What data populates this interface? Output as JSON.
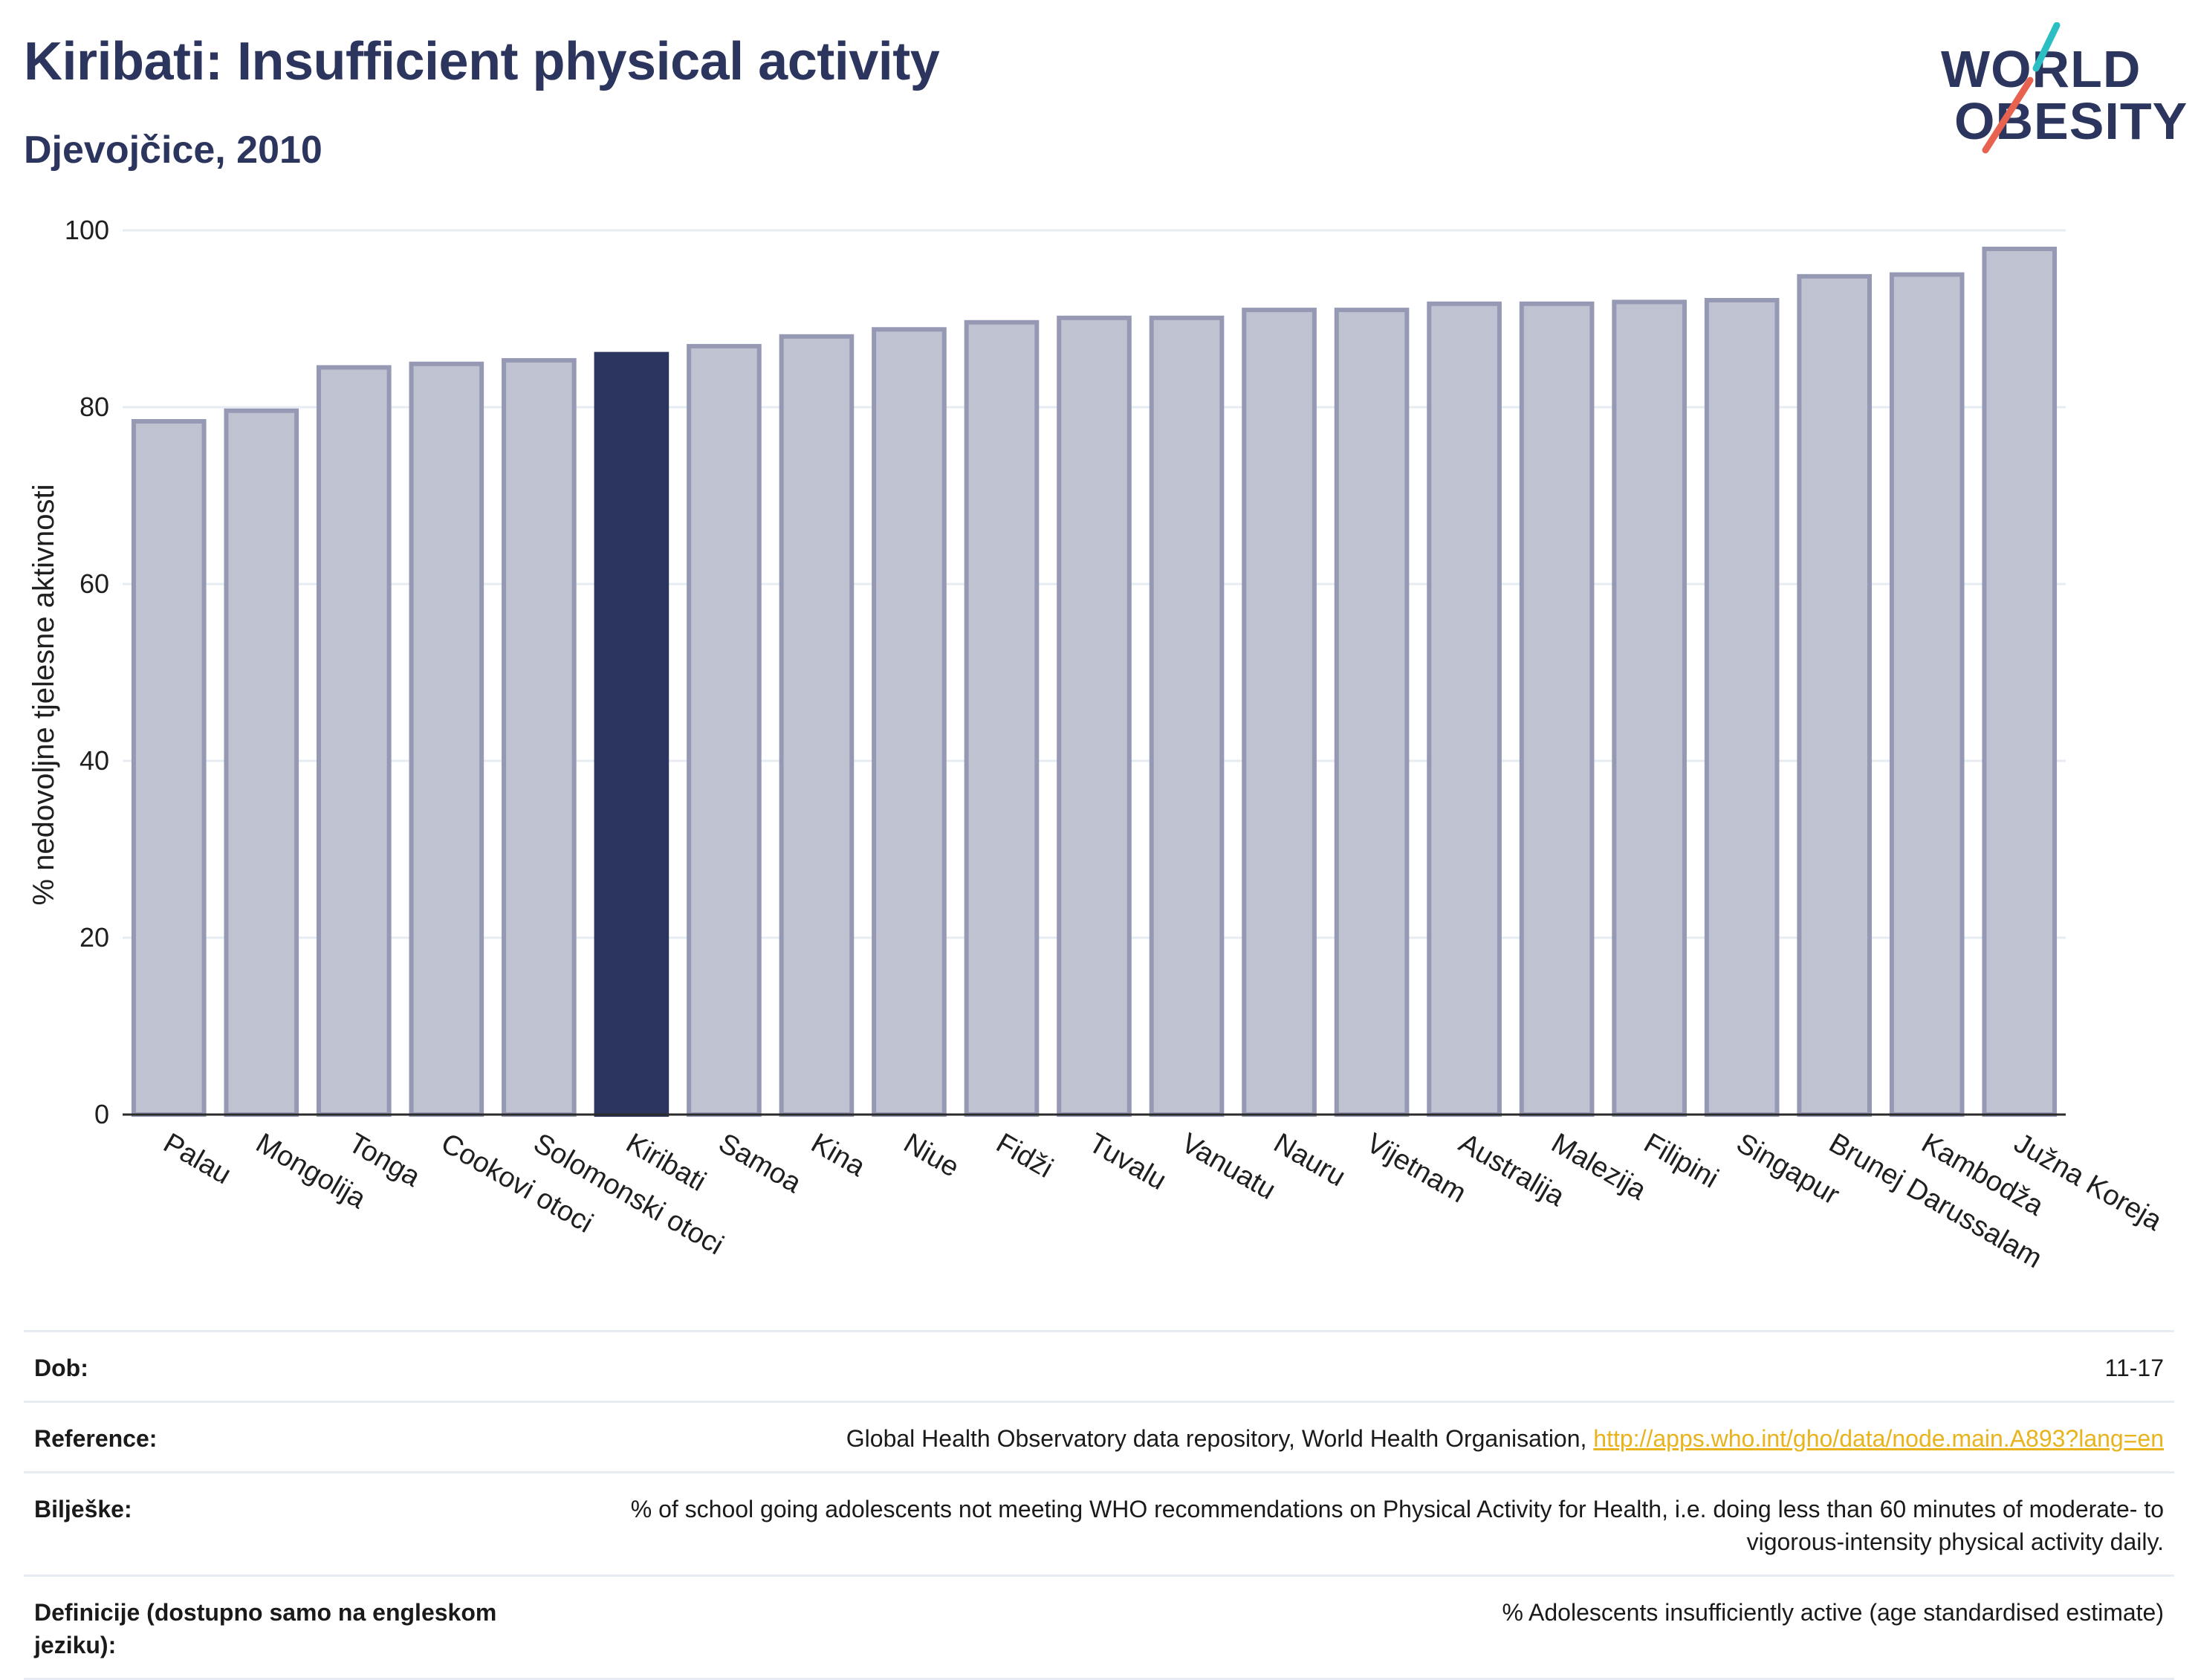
{
  "header": {
    "title": "Kiribati: Insufficient physical activity",
    "subtitle": "Djevojčice, 2010"
  },
  "logo": {
    "line1": "WORLD",
    "line2": "OBESITY",
    "colors": {
      "text": "#2b355d",
      "teal": "#2bbfc4",
      "red": "#e7624f"
    }
  },
  "colors": {
    "bar": "#bfc2d1",
    "bar_border": "#9599b3",
    "highlight": "#2b355d",
    "grid": "#e7ecf3",
    "axis": "#2b2b2b"
  },
  "chart_data": {
    "type": "bar",
    "title": "",
    "xlabel": "",
    "ylabel": "% nedovoljne tjelesne aktivnosti",
    "ylim": [
      0,
      100
    ],
    "yticks": [
      0,
      20,
      40,
      60,
      80,
      100
    ],
    "grid": true,
    "highlight": "Kiribati",
    "categories": [
      "Palau",
      "Mongolija",
      "Tonga",
      "Cookovi otoci",
      "Solomonski otoci",
      "Kiribati",
      "Samoa",
      "Kina",
      "Niue",
      "Fidži",
      "Tuvalu",
      "Vanuatu",
      "Nauru",
      "Vijetnam",
      "Australija",
      "Malezija",
      "Filipini",
      "Singapur",
      "Brunej Darussalam",
      "Kambodža",
      "Južna Koreja"
    ],
    "values": [
      78.4,
      79.6,
      84.5,
      84.9,
      85.3,
      86.0,
      86.9,
      88.0,
      88.8,
      89.6,
      90.1,
      90.1,
      91.0,
      91.0,
      91.7,
      91.7,
      91.9,
      92.1,
      94.8,
      95.0,
      97.9
    ]
  },
  "table": {
    "rows": [
      {
        "label": "Dob:",
        "value": "11-17"
      },
      {
        "label": "Reference:",
        "value": "Global Health Observatory data repository, World Health Organisation, ",
        "link": "http://apps.who.int/gho/data/node.main.A893?lang=en"
      },
      {
        "label": "Bilješke:",
        "value": "% of school going adolescents not meeting WHO recommendations on Physical Activity for Health, i.e. doing less than 60 minutes of moderate- to vigorous-intensity physical activity daily."
      },
      {
        "label": "Definicije (dostupno samo na engleskom jeziku):",
        "value": "% Adolescents insufficiently active (age standardised estimate)"
      }
    ]
  }
}
